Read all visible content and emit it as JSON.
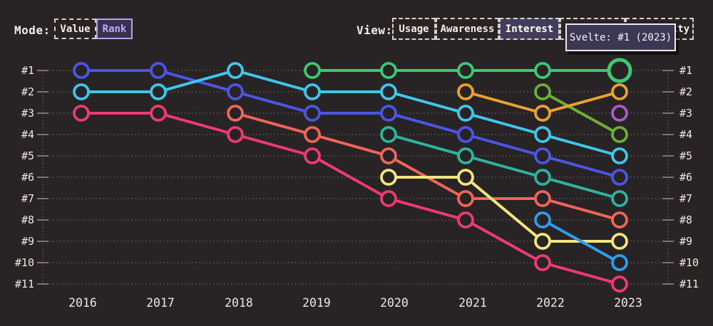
{
  "controls": {
    "mode": {
      "label": "Mode:",
      "options": [
        {
          "label": "Value",
          "selected": false
        },
        {
          "label": "Rank",
          "selected": true
        }
      ]
    },
    "view": {
      "label": "View:",
      "options": [
        {
          "label": "Usage",
          "selected": false
        },
        {
          "label": "Awareness",
          "selected": false
        },
        {
          "label": "Interest",
          "selected": true
        },
        {
          "label": "",
          "selected": false
        },
        {
          "label": "Positivity",
          "selected": false
        }
      ]
    }
  },
  "tooltip": {
    "text": "Svelte: #1 (2023)"
  },
  "theme": {
    "background": "#282324",
    "grid_dot_color": "#6a6361",
    "tick_color": "#9d968f",
    "axis_text_color": "#efe9e1",
    "selected_purple_border": "#b2a4ee",
    "selected_purple_text": "#bcaaf6"
  },
  "chart_data": {
    "type": "line",
    "subtype": "bump-rank-chart",
    "x": [
      2016,
      2017,
      2018,
      2019,
      2020,
      2021,
      2022,
      2023
    ],
    "y_axis_labels": [
      "#1",
      "#2",
      "#3",
      "#4",
      "#5",
      "#6",
      "#7",
      "#8",
      "#9",
      "#10",
      "#11"
    ],
    "y_axis_sides": "both",
    "grid": "dotted-horizontal",
    "legend": "none",
    "highlight_point": {
      "series": "svelte-green",
      "year": 2023,
      "rank": 1
    },
    "series": [
      {
        "name": "blue",
        "color": "#4c56e4",
        "ranks": [
          1,
          1,
          2,
          3,
          3,
          4,
          5,
          6
        ]
      },
      {
        "name": "cyan",
        "color": "#3fc6e8",
        "ranks": [
          2,
          2,
          1,
          2,
          2,
          3,
          4,
          5
        ]
      },
      {
        "name": "pink",
        "color": "#ee3a72",
        "ranks": [
          3,
          3,
          4,
          5,
          7,
          8,
          10,
          11
        ]
      },
      {
        "name": "salmon",
        "color": "#ef655a",
        "ranks": [
          null,
          null,
          3,
          4,
          5,
          7,
          7,
          8
        ]
      },
      {
        "name": "svelte-green",
        "color": "#3ec874",
        "ranks": [
          null,
          null,
          null,
          1,
          1,
          1,
          1,
          1
        ]
      },
      {
        "name": "teal",
        "color": "#30b39d",
        "ranks": [
          null,
          null,
          null,
          null,
          4,
          5,
          6,
          7
        ]
      },
      {
        "name": "yellow",
        "color": "#f3e57d",
        "ranks": [
          null,
          null,
          null,
          null,
          6,
          6,
          9,
          9
        ]
      },
      {
        "name": "olive-green",
        "color": "#6cae36",
        "ranks": [
          null,
          null,
          null,
          null,
          null,
          null,
          2,
          4
        ]
      },
      {
        "name": "orange",
        "color": "#e9a231",
        "ranks": [
          null,
          null,
          null,
          null,
          null,
          2,
          3,
          2
        ]
      },
      {
        "name": "sky-blue",
        "color": "#2f9cec",
        "ranks": [
          null,
          null,
          null,
          null,
          null,
          null,
          8,
          10
        ]
      },
      {
        "name": "purple",
        "color": "#a95cc8",
        "ranks": [
          null,
          null,
          null,
          null,
          null,
          null,
          null,
          3
        ]
      }
    ]
  }
}
